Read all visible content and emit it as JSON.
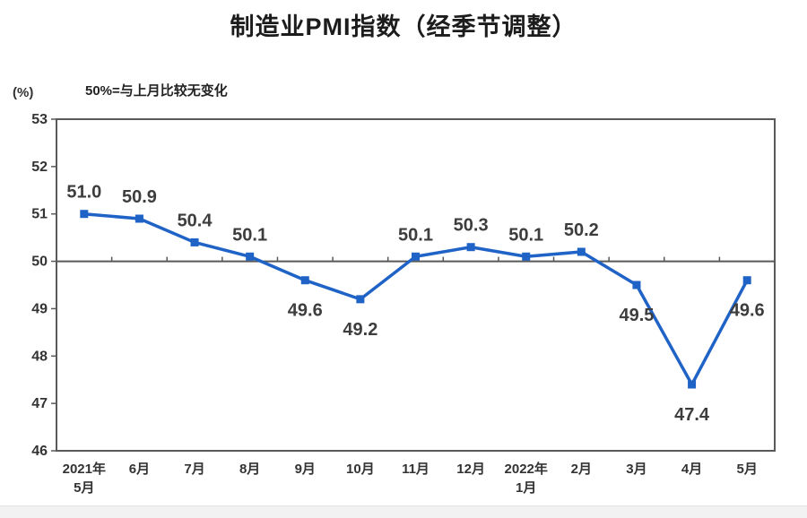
{
  "title": "制造业PMI指数（经季节调整）",
  "unit_label": "(%)",
  "subtitle": "50%=与上月比较无变化",
  "colors": {
    "line": "#1f63c6",
    "axis": "#595959",
    "data_label": "#3d3d3d",
    "axis_text": "#333333"
  },
  "chart_data": {
    "type": "line",
    "title": "制造业PMI指数（经季节调整）",
    "subtitle": "50%=与上月比较无变化",
    "unit": "(%)",
    "categories": [
      "2021年5月",
      "6月",
      "7月",
      "8月",
      "9月",
      "10月",
      "11月",
      "12月",
      "2022年1月",
      "2月",
      "3月",
      "4月",
      "5月"
    ],
    "x_tick_lines": [
      [
        "2021年",
        "5月"
      ],
      [
        "6月"
      ],
      [
        "7月"
      ],
      [
        "8月"
      ],
      [
        "9月"
      ],
      [
        "10月"
      ],
      [
        "11月"
      ],
      [
        "12月"
      ],
      [
        "2022年",
        "1月"
      ],
      [
        "2月"
      ],
      [
        "3月"
      ],
      [
        "4月"
      ],
      [
        "5月"
      ]
    ],
    "series": [
      {
        "name": "制造业PMI",
        "values": [
          51.0,
          50.9,
          50.4,
          50.1,
          49.6,
          49.2,
          50.1,
          50.3,
          50.1,
          50.2,
          49.5,
          47.4,
          49.6
        ],
        "data_labels": [
          "51.0",
          "50.9",
          "50.4",
          "50.1",
          "49.6",
          "49.2",
          "50.1",
          "50.3",
          "50.1",
          "50.2",
          "49.5",
          "47.4",
          "49.6"
        ],
        "label_side": [
          "above",
          "above",
          "above",
          "above",
          "below",
          "below",
          "above",
          "above",
          "above",
          "above",
          "below",
          "below",
          "below"
        ]
      }
    ],
    "ylim": [
      46,
      53
    ],
    "y_ticks": [
      46,
      47,
      48,
      49,
      50,
      51,
      52,
      53
    ],
    "reference_line": 50,
    "grid": false,
    "legend": false,
    "marker": "square"
  }
}
